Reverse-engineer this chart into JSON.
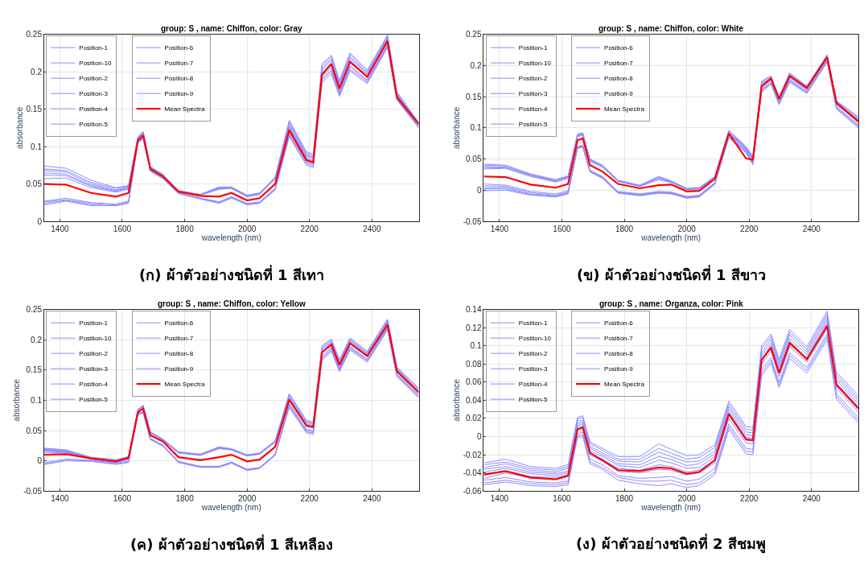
{
  "chart_data": [
    {
      "type": "line",
      "title": "group: S , name: Chiffon, color: Gray",
      "xlabel": "wavelength (nm)",
      "ylabel": "absorbance",
      "annotations": [
        "(ก) ผ้าตัวอย่างชนิดที่ 1 สีเทา"
      ],
      "xlim": [
        1350,
        2550
      ],
      "xticks": [
        1400,
        1600,
        1800,
        2000,
        2200,
        2400
      ],
      "ylim": [
        0,
        0.25
      ],
      "yticks": [
        0,
        0.05,
        0.1,
        0.15,
        0.2,
        0.25
      ],
      "grid": true,
      "legend": "top left",
      "x": [
        1350,
        1420,
        1500,
        1580,
        1620,
        1650,
        1667,
        1690,
        1730,
        1780,
        1850,
        1910,
        1950,
        2000,
        2040,
        2090,
        2135,
        2190,
        2212,
        2240,
        2270,
        2296,
        2330,
        2385,
        2450,
        2480,
        2550
      ],
      "series": [
        {
          "name": "Position-1",
          "color": "#8c8cff",
          "values": [
            0.074,
            0.071,
            0.055,
            0.045,
            0.048,
            0.112,
            0.119,
            0.072,
            0.062,
            0.04,
            0.036,
            0.044,
            0.045,
            0.034,
            0.037,
            0.058,
            0.135,
            0.093,
            0.09,
            0.21,
            0.222,
            0.188,
            0.225,
            0.202,
            0.249,
            0.173,
            0.132
          ]
        },
        {
          "name": "Position-10",
          "color": "#8c8cff",
          "values": [
            0.057,
            0.058,
            0.045,
            0.039,
            0.043,
            0.111,
            0.118,
            0.071,
            0.061,
            0.039,
            0.035,
            0.043,
            0.044,
            0.033,
            0.036,
            0.057,
            0.124,
            0.084,
            0.081,
            0.198,
            0.21,
            0.178,
            0.213,
            0.193,
            0.241,
            0.168,
            0.129
          ]
        },
        {
          "name": "Position-2",
          "color": "#8c8cff",
          "values": [
            0.07,
            0.068,
            0.052,
            0.044,
            0.047,
            0.112,
            0.119,
            0.072,
            0.062,
            0.04,
            0.036,
            0.045,
            0.045,
            0.034,
            0.037,
            0.058,
            0.131,
            0.089,
            0.086,
            0.205,
            0.217,
            0.184,
            0.22,
            0.198,
            0.246,
            0.171,
            0.131
          ]
        },
        {
          "name": "Position-3",
          "color": "#8c8cff",
          "values": [
            0.068,
            0.066,
            0.05,
            0.042,
            0.046,
            0.113,
            0.12,
            0.073,
            0.063,
            0.041,
            0.036,
            0.046,
            0.046,
            0.035,
            0.038,
            0.059,
            0.133,
            0.091,
            0.088,
            0.208,
            0.22,
            0.186,
            0.223,
            0.2,
            0.247,
            0.172,
            0.131
          ]
        },
        {
          "name": "Position-4",
          "color": "#8c8cff",
          "values": [
            0.027,
            0.031,
            0.025,
            0.023,
            0.027,
            0.106,
            0.111,
            0.068,
            0.058,
            0.038,
            0.03,
            0.025,
            0.032,
            0.023,
            0.025,
            0.043,
            0.115,
            0.077,
            0.074,
            0.188,
            0.2,
            0.169,
            0.203,
            0.186,
            0.234,
            0.163,
            0.126
          ]
        },
        {
          "name": "Position-5",
          "color": "#8c8cff",
          "values": [
            0.065,
            0.063,
            0.048,
            0.041,
            0.045,
            0.111,
            0.118,
            0.072,
            0.062,
            0.04,
            0.035,
            0.044,
            0.045,
            0.034,
            0.037,
            0.058,
            0.126,
            0.086,
            0.083,
            0.2,
            0.212,
            0.18,
            0.215,
            0.195,
            0.242,
            0.169,
            0.129
          ]
        },
        {
          "name": "Position-6",
          "color": "#8c8cff",
          "values": [
            0.026,
            0.029,
            0.024,
            0.022,
            0.026,
            0.105,
            0.11,
            0.067,
            0.057,
            0.037,
            0.03,
            0.024,
            0.031,
            0.022,
            0.024,
            0.042,
            0.113,
            0.075,
            0.072,
            0.185,
            0.197,
            0.167,
            0.201,
            0.184,
            0.232,
            0.162,
            0.125
          ]
        },
        {
          "name": "Position-7",
          "color": "#8c8cff",
          "values": [
            0.024,
            0.028,
            0.022,
            0.021,
            0.025,
            0.106,
            0.111,
            0.068,
            0.058,
            0.038,
            0.031,
            0.026,
            0.032,
            0.023,
            0.025,
            0.043,
            0.117,
            0.079,
            0.076,
            0.19,
            0.202,
            0.171,
            0.206,
            0.188,
            0.235,
            0.164,
            0.126
          ]
        },
        {
          "name": "Position-8",
          "color": "#8c8cff",
          "values": [
            0.062,
            0.061,
            0.047,
            0.04,
            0.044,
            0.11,
            0.117,
            0.071,
            0.061,
            0.039,
            0.035,
            0.043,
            0.044,
            0.033,
            0.036,
            0.057,
            0.128,
            0.088,
            0.085,
            0.203,
            0.215,
            0.182,
            0.218,
            0.197,
            0.244,
            0.17,
            0.13
          ]
        },
        {
          "name": "Position-9",
          "color": "#8c8cff",
          "values": [
            0.022,
            0.027,
            0.021,
            0.021,
            0.024,
            0.107,
            0.112,
            0.069,
            0.059,
            0.038,
            0.031,
            0.026,
            0.033,
            0.024,
            0.026,
            0.044,
            0.12,
            0.08,
            0.077,
            0.193,
            0.205,
            0.173,
            0.208,
            0.189,
            0.237,
            0.165,
            0.127
          ]
        },
        {
          "name": "Mean Spectra",
          "color": "#ff0000",
          "values": [
            0.05,
            0.049,
            0.038,
            0.033,
            0.038,
            0.108,
            0.115,
            0.07,
            0.06,
            0.04,
            0.034,
            0.033,
            0.038,
            0.028,
            0.031,
            0.05,
            0.122,
            0.082,
            0.079,
            0.196,
            0.21,
            0.177,
            0.213,
            0.193,
            0.241,
            0.166,
            0.13
          ]
        }
      ]
    },
    {
      "type": "line",
      "title": "group: S , name: Chiffon, color: White",
      "xlabel": "wavelength (nm)",
      "ylabel": "absorbance",
      "annotations": [
        "(ข) ผ้าตัวอย่างชนิดที่ 1 สีขาว"
      ],
      "xlim": [
        1350,
        2550
      ],
      "xticks": [
        1400,
        1600,
        1800,
        2000,
        2200,
        2400
      ],
      "ylim": [
        -0.05,
        0.25
      ],
      "yticks": [
        -0.05,
        0,
        0.05,
        0.1,
        0.15,
        0.2,
        0.25
      ],
      "grid": true,
      "legend": "top left",
      "x": [
        1350,
        1420,
        1500,
        1580,
        1620,
        1650,
        1667,
        1690,
        1730,
        1780,
        1850,
        1910,
        1950,
        2000,
        2040,
        2090,
        2135,
        2190,
        2212,
        2240,
        2270,
        2296,
        2330,
        2385,
        2450,
        2480,
        2550
      ],
      "series": [
        {
          "name": "Position-1",
          "color": "#8c8cff",
          "values": [
            0.042,
            0.04,
            0.026,
            0.017,
            0.023,
            0.09,
            0.092,
            0.05,
            0.04,
            0.016,
            0.008,
            0.022,
            0.015,
            0.003,
            0.004,
            0.022,
            0.096,
            0.07,
            0.054,
            0.175,
            0.183,
            0.15,
            0.188,
            0.167,
            0.217,
            0.143,
            0.118
          ]
        },
        {
          "name": "Position-10",
          "color": "#8c8cff",
          "values": [
            -0.001,
            0.0,
            -0.008,
            -0.011,
            -0.006,
            0.068,
            0.07,
            0.03,
            0.02,
            -0.004,
            -0.008,
            -0.004,
            -0.005,
            -0.012,
            -0.01,
            0.01,
            0.084,
            0.06,
            0.041,
            0.157,
            0.17,
            0.137,
            0.173,
            0.155,
            0.205,
            0.13,
            0.1
          ]
        },
        {
          "name": "Position-2",
          "color": "#8c8cff",
          "values": [
            0.04,
            0.039,
            0.025,
            0.016,
            0.022,
            0.089,
            0.091,
            0.049,
            0.039,
            0.015,
            0.007,
            0.021,
            0.014,
            0.002,
            0.003,
            0.021,
            0.095,
            0.069,
            0.053,
            0.173,
            0.182,
            0.149,
            0.187,
            0.166,
            0.216,
            0.142,
            0.116
          ]
        },
        {
          "name": "Position-3",
          "color": "#8c8cff",
          "values": [
            0.038,
            0.037,
            0.024,
            0.015,
            0.021,
            0.088,
            0.09,
            0.049,
            0.039,
            0.015,
            0.007,
            0.02,
            0.014,
            0.002,
            0.003,
            0.021,
            0.094,
            0.068,
            0.051,
            0.171,
            0.18,
            0.147,
            0.185,
            0.165,
            0.215,
            0.14,
            0.114
          ]
        },
        {
          "name": "Position-4",
          "color": "#8c8cff",
          "values": [
            0.01,
            0.008,
            -0.002,
            -0.006,
            -0.001,
            0.07,
            0.072,
            0.032,
            0.022,
            -0.002,
            -0.006,
            -0.002,
            -0.003,
            -0.01,
            -0.008,
            0.012,
            0.09,
            0.065,
            0.048,
            0.166,
            0.177,
            0.144,
            0.181,
            0.161,
            0.211,
            0.137,
            0.109
          ]
        },
        {
          "name": "Position-5",
          "color": "#8c8cff",
          "values": [
            0.036,
            0.036,
            0.023,
            0.014,
            0.02,
            0.087,
            0.089,
            0.048,
            0.038,
            0.014,
            0.006,
            0.018,
            0.013,
            0.001,
            0.002,
            0.02,
            0.092,
            0.067,
            0.05,
            0.17,
            0.179,
            0.146,
            0.184,
            0.163,
            0.213,
            0.139,
            0.113
          ]
        },
        {
          "name": "Position-6",
          "color": "#8c8cff",
          "values": [
            0.007,
            0.006,
            -0.004,
            -0.008,
            -0.003,
            0.068,
            0.07,
            0.03,
            0.02,
            -0.004,
            -0.008,
            -0.004,
            -0.005,
            -0.012,
            -0.01,
            0.01,
            0.088,
            0.063,
            0.045,
            0.162,
            0.174,
            0.141,
            0.178,
            0.159,
            0.209,
            0.134,
            0.105
          ]
        },
        {
          "name": "Position-7",
          "color": "#8c8cff",
          "values": [
            0.004,
            0.004,
            -0.006,
            -0.009,
            -0.004,
            0.069,
            0.071,
            0.031,
            0.021,
            -0.003,
            -0.007,
            -0.003,
            -0.004,
            -0.011,
            -0.009,
            0.011,
            0.086,
            0.062,
            0.044,
            0.161,
            0.173,
            0.14,
            0.176,
            0.157,
            0.207,
            0.133,
            0.104
          ]
        },
        {
          "name": "Position-8",
          "color": "#8c8cff",
          "values": [
            0.034,
            0.035,
            0.022,
            0.013,
            0.019,
            0.086,
            0.088,
            0.047,
            0.037,
            0.014,
            0.006,
            0.017,
            0.012,
            0.001,
            0.002,
            0.02,
            0.091,
            0.066,
            0.049,
            0.168,
            0.178,
            0.145,
            0.182,
            0.162,
            0.212,
            0.138,
            0.111
          ]
        },
        {
          "name": "Position-9",
          "color": "#8c8cff",
          "values": [
            0.002,
            0.002,
            -0.007,
            -0.01,
            -0.005,
            0.067,
            0.069,
            0.029,
            0.019,
            -0.005,
            -0.009,
            -0.005,
            -0.006,
            -0.013,
            -0.011,
            0.009,
            0.085,
            0.061,
            0.042,
            0.159,
            0.171,
            0.138,
            0.175,
            0.156,
            0.206,
            0.131,
            0.102
          ]
        },
        {
          "name": "Mean Spectra",
          "color": "#ff0000",
          "values": [
            0.022,
            0.021,
            0.009,
            0.004,
            0.01,
            0.08,
            0.083,
            0.04,
            0.03,
            0.01,
            0.003,
            0.008,
            0.009,
            -0.002,
            -0.001,
            0.018,
            0.091,
            0.051,
            0.049,
            0.166,
            0.179,
            0.146,
            0.183,
            0.164,
            0.213,
            0.14,
            0.11
          ]
        }
      ]
    },
    {
      "type": "line",
      "title": "group: S , name: Chiffon, color: Yellow",
      "xlabel": "wavelength (nm)",
      "ylabel": "absorbance",
      "annotations": [
        "(ค) ผ้าตัวอย่างชนิดที่ 1 สีเหลือง"
      ],
      "xlim": [
        1350,
        2550
      ],
      "xticks": [
        1400,
        1600,
        1800,
        2000,
        2200,
        2400
      ],
      "ylim": [
        -0.05,
        0.25
      ],
      "yticks": [
        -0.05,
        0,
        0.05,
        0.1,
        0.15,
        0.2,
        0.25
      ],
      "grid": true,
      "legend": "top left",
      "x": [
        1350,
        1420,
        1500,
        1580,
        1620,
        1650,
        1667,
        1690,
        1730,
        1780,
        1850,
        1910,
        1950,
        2000,
        2040,
        2090,
        2135,
        2190,
        2212,
        2240,
        2270,
        2296,
        2330,
        2385,
        2450,
        2480,
        2550
      ],
      "series": [
        {
          "name": "Position-1",
          "color": "#8c8cff",
          "values": [
            0.021,
            0.018,
            0.006,
            0.002,
            0.007,
            0.085,
            0.092,
            0.048,
            0.036,
            0.015,
            0.011,
            0.023,
            0.02,
            0.01,
            0.013,
            0.033,
            0.111,
            0.067,
            0.064,
            0.19,
            0.201,
            0.167,
            0.203,
            0.181,
            0.234,
            0.155,
            0.12
          ]
        },
        {
          "name": "Position-10",
          "color": "#8c8cff",
          "values": [
            0.014,
            0.013,
            0.003,
            -0.003,
            0.003,
            0.077,
            0.08,
            0.036,
            0.025,
            -0.002,
            -0.01,
            -0.01,
            -0.003,
            -0.015,
            -0.012,
            0.01,
            0.095,
            0.052,
            0.05,
            0.173,
            0.187,
            0.153,
            0.189,
            0.168,
            0.221,
            0.144,
            0.109
          ]
        },
        {
          "name": "Position-2",
          "color": "#8c8cff",
          "values": [
            0.02,
            0.017,
            0.005,
            0.001,
            0.006,
            0.084,
            0.091,
            0.047,
            0.035,
            0.014,
            0.01,
            0.022,
            0.019,
            0.009,
            0.012,
            0.032,
            0.109,
            0.065,
            0.062,
            0.188,
            0.199,
            0.165,
            0.201,
            0.179,
            0.232,
            0.153,
            0.118
          ]
        },
        {
          "name": "Position-3",
          "color": "#8c8cff",
          "values": [
            0.019,
            0.016,
            0.005,
            0.0,
            0.005,
            0.084,
            0.09,
            0.047,
            0.035,
            0.014,
            0.01,
            0.021,
            0.019,
            0.009,
            0.012,
            0.032,
            0.106,
            0.063,
            0.06,
            0.185,
            0.197,
            0.163,
            0.199,
            0.177,
            0.23,
            0.152,
            0.117
          ]
        },
        {
          "name": "Position-4",
          "color": "#8c8cff",
          "values": [
            -0.003,
            0.003,
            0.001,
            -0.004,
            0.0,
            0.078,
            0.081,
            0.037,
            0.026,
            -0.001,
            -0.009,
            -0.009,
            -0.002,
            -0.014,
            -0.011,
            0.011,
            0.093,
            0.05,
            0.048,
            0.17,
            0.185,
            0.151,
            0.187,
            0.167,
            0.22,
            0.142,
            0.107
          ]
        },
        {
          "name": "Position-5",
          "color": "#8c8cff",
          "values": [
            0.018,
            0.015,
            0.004,
            -0.001,
            0.004,
            0.083,
            0.09,
            0.046,
            0.034,
            0.013,
            0.009,
            0.021,
            0.018,
            0.008,
            0.011,
            0.031,
            0.104,
            0.061,
            0.058,
            0.183,
            0.195,
            0.161,
            0.197,
            0.176,
            0.229,
            0.15,
            0.115
          ]
        },
        {
          "name": "Position-6",
          "color": "#8c8cff",
          "values": [
            0.016,
            0.014,
            0.003,
            -0.002,
            0.003,
            0.082,
            0.089,
            0.046,
            0.034,
            0.013,
            0.009,
            0.02,
            0.018,
            0.008,
            0.011,
            0.031,
            0.1,
            0.057,
            0.054,
            0.178,
            0.191,
            0.157,
            0.193,
            0.172,
            0.225,
            0.147,
            0.112
          ]
        },
        {
          "name": "Position-7",
          "color": "#8c8cff",
          "values": [
            -0.005,
            0.001,
            0.0,
            -0.005,
            -0.002,
            0.077,
            0.08,
            0.036,
            0.025,
            -0.002,
            -0.01,
            -0.01,
            -0.003,
            -0.015,
            -0.012,
            0.01,
            0.09,
            0.048,
            0.046,
            0.168,
            0.183,
            0.149,
            0.185,
            0.165,
            0.218,
            0.141,
            0.106
          ]
        },
        {
          "name": "Position-8",
          "color": "#8c8cff",
          "values": [
            0.017,
            0.015,
            0.004,
            -0.002,
            0.004,
            0.083,
            0.089,
            0.047,
            0.035,
            0.014,
            0.01,
            0.022,
            0.019,
            0.009,
            0.012,
            0.032,
            0.102,
            0.059,
            0.056,
            0.18,
            0.193,
            0.159,
            0.195,
            0.174,
            0.227,
            0.149,
            0.114
          ]
        },
        {
          "name": "Position-9",
          "color": "#8c8cff",
          "values": [
            -0.006,
            0.0,
            -0.001,
            -0.006,
            -0.003,
            0.076,
            0.079,
            0.035,
            0.024,
            -0.003,
            -0.011,
            -0.011,
            -0.004,
            -0.016,
            -0.013,
            0.009,
            0.088,
            0.046,
            0.044,
            0.165,
            0.181,
            0.147,
            0.183,
            0.163,
            0.216,
            0.139,
            0.104
          ]
        },
        {
          "name": "Mean Spectra",
          "color": "#ff0000",
          "values": [
            0.01,
            0.011,
            0.004,
            -0.001,
            0.005,
            0.08,
            0.086,
            0.042,
            0.032,
            0.006,
            0.001,
            0.006,
            0.01,
            -0.001,
            0.002,
            0.023,
            0.101,
            0.058,
            0.056,
            0.179,
            0.192,
            0.158,
            0.194,
            0.173,
            0.225,
            0.148,
            0.113
          ]
        }
      ]
    },
    {
      "type": "line",
      "title": "group: S , name: Organza, color: Pink",
      "xlabel": "wavelength (nm)",
      "ylabel": "absorbance",
      "annotations": [
        "(ง) ผ้าตัวอย่างชนิดที่ 2 สีชมพู"
      ],
      "xlim": [
        1350,
        2550
      ],
      "xticks": [
        1400,
        1600,
        1800,
        2000,
        2200,
        2400
      ],
      "ylim": [
        -0.06,
        0.14
      ],
      "yticks": [
        -0.06,
        -0.04,
        -0.02,
        0,
        0.02,
        0.04,
        0.06,
        0.08,
        0.1,
        0.12,
        0.14
      ],
      "grid": true,
      "legend": "top left",
      "x": [
        1350,
        1420,
        1500,
        1580,
        1620,
        1650,
        1667,
        1690,
        1730,
        1780,
        1850,
        1910,
        1950,
        2000,
        2040,
        2090,
        2135,
        2190,
        2212,
        2240,
        2270,
        2296,
        2330,
        2385,
        2450,
        2480,
        2550
      ],
      "series": [
        {
          "name": "Position-1",
          "color": "#8c8cff",
          "values": [
            -0.029,
            -0.025,
            -0.033,
            -0.035,
            -0.031,
            0.021,
            0.023,
            -0.006,
            -0.013,
            -0.022,
            -0.022,
            -0.008,
            -0.014,
            -0.021,
            -0.02,
            -0.009,
            0.039,
            0.011,
            0.01,
            0.1,
            0.113,
            0.085,
            0.118,
            0.099,
            0.138,
            0.071,
            0.045
          ]
        },
        {
          "name": "Position-10",
          "color": "#8c8cff",
          "values": [
            -0.046,
            -0.04,
            -0.046,
            -0.047,
            -0.044,
            0.008,
            0.009,
            -0.02,
            -0.027,
            -0.038,
            -0.04,
            -0.036,
            -0.037,
            -0.042,
            -0.04,
            -0.029,
            0.02,
            -0.007,
            -0.008,
            0.08,
            0.094,
            0.066,
            0.099,
            0.082,
            0.119,
            0.053,
            0.027
          ]
        },
        {
          "name": "Position-2",
          "color": "#8c8cff",
          "values": [
            -0.031,
            -0.028,
            -0.035,
            -0.037,
            -0.033,
            0.019,
            0.021,
            -0.008,
            -0.015,
            -0.025,
            -0.025,
            -0.013,
            -0.018,
            -0.025,
            -0.023,
            -0.012,
            0.036,
            0.008,
            0.007,
            0.097,
            0.11,
            0.082,
            0.115,
            0.096,
            0.135,
            0.068,
            0.042
          ]
        },
        {
          "name": "Position-3",
          "color": "#8c8cff",
          "values": [
            -0.034,
            -0.03,
            -0.037,
            -0.039,
            -0.035,
            0.017,
            0.018,
            -0.011,
            -0.018,
            -0.027,
            -0.028,
            -0.017,
            -0.022,
            -0.028,
            -0.027,
            -0.016,
            0.033,
            0.005,
            0.004,
            0.093,
            0.107,
            0.079,
            0.112,
            0.093,
            0.132,
            0.065,
            0.039
          ]
        },
        {
          "name": "Position-4",
          "color": "#8c8cff",
          "values": [
            -0.051,
            -0.048,
            -0.052,
            -0.053,
            -0.051,
            0.001,
            0.002,
            -0.028,
            -0.034,
            -0.045,
            -0.049,
            -0.049,
            -0.048,
            -0.053,
            -0.051,
            -0.039,
            0.011,
            -0.016,
            -0.017,
            0.07,
            0.084,
            0.057,
            0.089,
            0.073,
            0.11,
            0.044,
            0.018
          ]
        },
        {
          "name": "Position-5",
          "color": "#8c8cff",
          "values": [
            -0.036,
            -0.033,
            -0.039,
            -0.041,
            -0.038,
            0.014,
            0.016,
            -0.013,
            -0.02,
            -0.03,
            -0.031,
            -0.022,
            -0.025,
            -0.032,
            -0.03,
            -0.019,
            0.03,
            0.002,
            0.001,
            0.09,
            0.103,
            0.076,
            0.108,
            0.09,
            0.129,
            0.062,
            0.036
          ]
        },
        {
          "name": "Position-6",
          "color": "#8c8cff",
          "values": [
            -0.041,
            -0.038,
            -0.044,
            -0.045,
            -0.042,
            0.01,
            0.012,
            -0.018,
            -0.025,
            -0.035,
            -0.037,
            -0.031,
            -0.033,
            -0.039,
            -0.037,
            -0.026,
            0.024,
            -0.004,
            -0.005,
            0.084,
            0.097,
            0.07,
            0.102,
            0.085,
            0.123,
            0.056,
            0.03
          ]
        },
        {
          "name": "Position-7",
          "color": "#8c8cff",
          "values": [
            -0.048,
            -0.045,
            -0.05,
            -0.051,
            -0.049,
            0.003,
            0.005,
            -0.025,
            -0.031,
            -0.043,
            -0.046,
            -0.045,
            -0.044,
            -0.049,
            -0.047,
            -0.035,
            0.014,
            -0.013,
            -0.014,
            0.074,
            0.087,
            0.06,
            0.092,
            0.076,
            0.113,
            0.047,
            0.021
          ]
        },
        {
          "name": "Position-8",
          "color": "#8c8cff",
          "values": [
            -0.039,
            -0.035,
            -0.041,
            -0.043,
            -0.04,
            0.012,
            0.014,
            -0.016,
            -0.022,
            -0.032,
            -0.034,
            -0.026,
            -0.029,
            -0.035,
            -0.034,
            -0.022,
            0.027,
            -0.001,
            -0.002,
            0.087,
            0.1,
            0.073,
            0.105,
            0.087,
            0.126,
            0.059,
            0.033
          ]
        },
        {
          "name": "Position-9",
          "color": "#8c8cff",
          "values": [
            -0.053,
            -0.05,
            -0.054,
            -0.055,
            -0.053,
            -0.001,
            0.0,
            -0.03,
            -0.036,
            -0.048,
            -0.052,
            -0.054,
            -0.052,
            -0.056,
            -0.054,
            -0.042,
            0.008,
            -0.019,
            -0.02,
            0.067,
            0.081,
            0.054,
            0.086,
            0.07,
            0.107,
            0.041,
            0.015
          ]
        },
        {
          "name": "Mean Spectra",
          "color": "#ff0000",
          "values": [
            -0.042,
            -0.038,
            -0.045,
            -0.047,
            -0.043,
            0.008,
            0.01,
            -0.018,
            -0.026,
            -0.037,
            -0.038,
            -0.034,
            -0.035,
            -0.041,
            -0.039,
            -0.026,
            0.025,
            -0.003,
            -0.004,
            0.084,
            0.098,
            0.07,
            0.103,
            0.085,
            0.122,
            0.057,
            0.031
          ]
        }
      ]
    }
  ]
}
